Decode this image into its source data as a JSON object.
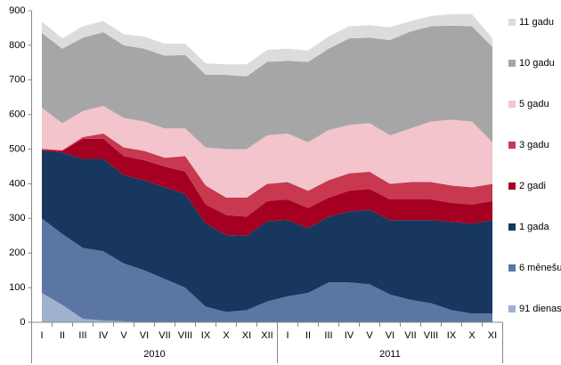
{
  "chart_data": {
    "type": "stacked_area",
    "categories": [
      "I",
      "II",
      "III",
      "IV",
      "V",
      "VI",
      "VII",
      "VIII",
      "IX",
      "X",
      "XI",
      "XII",
      "I",
      "II",
      "III",
      "IV",
      "V",
      "VI",
      "VII",
      "VIII",
      "IX",
      "X",
      "XI"
    ],
    "x_groups": [
      {
        "label": "2010",
        "count": 12
      },
      {
        "label": "2011",
        "count": 11
      }
    ],
    "series": [
      {
        "name": "91 dienas",
        "color": "#9fb1cc",
        "values": [
          85,
          50,
          10,
          5,
          3,
          0,
          0,
          0,
          0,
          0,
          0,
          0,
          0,
          0,
          0,
          0,
          0,
          0,
          0,
          0,
          0,
          0,
          0
        ]
      },
      {
        "name": "6 mēnešu",
        "color": "#5b76a3",
        "values": [
          215,
          205,
          205,
          200,
          167,
          150,
          125,
          100,
          45,
          30,
          35,
          60,
          75,
          85,
          115,
          115,
          110,
          80,
          65,
          55,
          35,
          25,
          25
        ]
      },
      {
        "name": "1 gada",
        "color": "#17375e",
        "values": [
          197,
          235,
          257,
          267,
          255,
          260,
          265,
          270,
          240,
          222,
          215,
          232,
          220,
          187,
          190,
          205,
          215,
          215,
          230,
          240,
          255,
          260,
          270
        ]
      },
      {
        "name": "2 gadi",
        "color": "#a50021",
        "values": [
          2,
          5,
          58,
          58,
          55,
          58,
          60,
          65,
          55,
          58,
          55,
          58,
          60,
          58,
          55,
          60,
          60,
          60,
          60,
          60,
          55,
          55,
          55
        ]
      },
      {
        "name": "3 gadu",
        "color": "#c8384f",
        "values": [
          2,
          2,
          5,
          15,
          25,
          27,
          25,
          45,
          55,
          50,
          55,
          50,
          50,
          50,
          50,
          50,
          50,
          45,
          50,
          50,
          50,
          50,
          50
        ]
      },
      {
        "name": "5 gadu",
        "color": "#f3c4cb",
        "values": [
          119,
          78,
          75,
          80,
          85,
          85,
          85,
          80,
          110,
          140,
          140,
          140,
          140,
          140,
          145,
          140,
          140,
          140,
          155,
          175,
          190,
          190,
          120
        ]
      },
      {
        "name": "10 gadu",
        "color": "#a6a6a6",
        "values": [
          215,
          215,
          212,
          213,
          210,
          210,
          210,
          212,
          210,
          215,
          210,
          212,
          210,
          232,
          235,
          250,
          247,
          275,
          280,
          275,
          272,
          275,
          275
        ]
      },
      {
        "name": "11 gadu",
        "color": "#dcdcdc",
        "values": [
          33,
          30,
          33,
          32,
          32,
          35,
          35,
          33,
          33,
          30,
          35,
          35,
          35,
          33,
          35,
          35,
          36,
          37,
          30,
          30,
          33,
          35,
          25
        ]
      }
    ],
    "ylim": [
      0,
      900
    ],
    "yticks": [
      0,
      100,
      200,
      300,
      400,
      500,
      600,
      700,
      800,
      900
    ],
    "grid": false
  }
}
